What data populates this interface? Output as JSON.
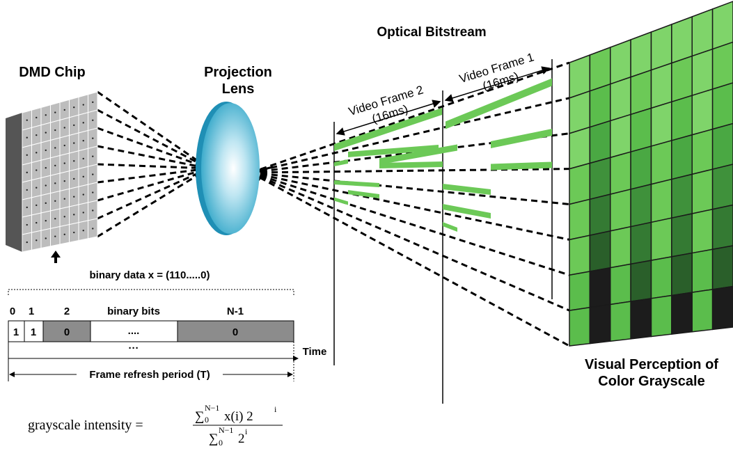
{
  "labels": {
    "dmd_chip": "DMD Chip",
    "projection_lens": [
      "Projection",
      "Lens"
    ],
    "optical_bitstream": "Optical Bitstream",
    "video_frame_2": [
      "Video Frame 2",
      "(16ms)"
    ],
    "video_frame_1": [
      "Video Frame 1",
      "(16ms)"
    ],
    "visual_perception": [
      "Visual Perception of",
      "Color Grayscale"
    ]
  },
  "bit_diagram": {
    "title": "binary data x =  (110.....0)",
    "indices": [
      "0",
      "1",
      "2",
      "binary bits",
      "N-1"
    ],
    "cells": [
      "1",
      "1",
      "0",
      "....",
      "0"
    ],
    "ellipsis": "···",
    "time": "Time",
    "period": "Frame refresh period (T)"
  },
  "formula": {
    "lhs": "grayscale intensity =",
    "numerator": {
      "symbol": "∑",
      "lower": "0",
      "upper": "N−1",
      "term": "x(i) 2",
      "exponent": "i"
    },
    "denominator": {
      "symbol": "∑",
      "lower": "0",
      "upper": "N−1",
      "term": "2",
      "exponent": "i"
    }
  }
}
